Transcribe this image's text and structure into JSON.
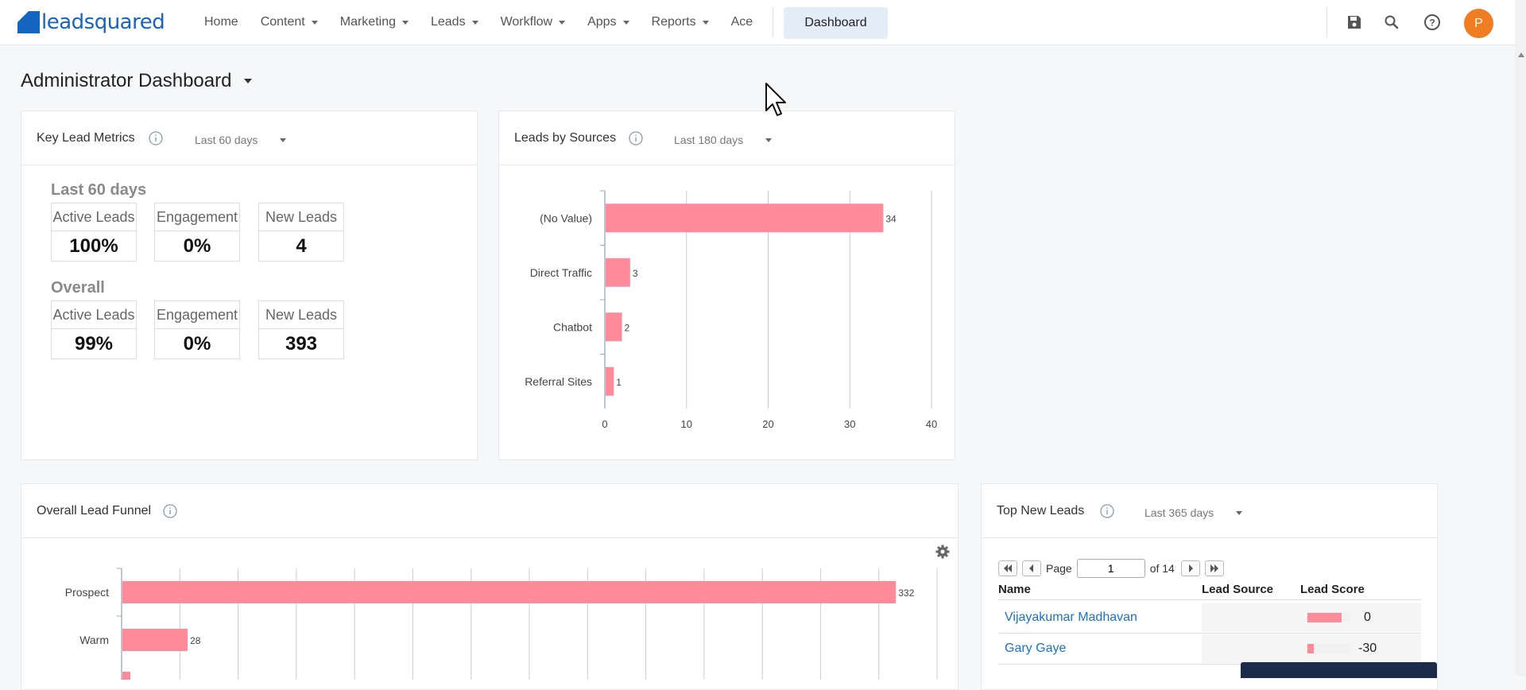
{
  "app": {
    "logo_text": "leadsquared"
  },
  "nav": {
    "items": [
      {
        "label": "Home",
        "dropdown": false
      },
      {
        "label": "Content",
        "dropdown": true
      },
      {
        "label": "Marketing",
        "dropdown": true
      },
      {
        "label": "Leads",
        "dropdown": true
      },
      {
        "label": "Workflow",
        "dropdown": true
      },
      {
        "label": "Apps",
        "dropdown": true
      },
      {
        "label": "Reports",
        "dropdown": true
      },
      {
        "label": "Ace",
        "dropdown": false
      }
    ],
    "active": "Dashboard",
    "icons": [
      "save-icon",
      "search-icon",
      "help-icon"
    ],
    "avatar_initial": "P"
  },
  "page": {
    "title": "Administrator Dashboard"
  },
  "key_metrics": {
    "title": "Key Lead Metrics",
    "period": "Last 60 days",
    "groups": [
      {
        "title": "Last 60 days",
        "metrics": [
          {
            "label": "Active Leads",
            "value": "100%"
          },
          {
            "label": "Engagement",
            "value": "0%"
          },
          {
            "label": "New Leads",
            "value": "4"
          }
        ]
      },
      {
        "title": "Overall",
        "metrics": [
          {
            "label": "Active Leads",
            "value": "99%"
          },
          {
            "label": "Engagement",
            "value": "0%"
          },
          {
            "label": "New Leads",
            "value": "393"
          }
        ]
      }
    ]
  },
  "leads_by_sources": {
    "title": "Leads by Sources",
    "period": "Last 180 days"
  },
  "funnel": {
    "title": "Overall Lead Funnel"
  },
  "top_new_leads": {
    "title": "Top New Leads",
    "period": "Last 365 days",
    "pager": {
      "page_label": "Page",
      "page_value": "1",
      "of_label": "of 14"
    },
    "columns": [
      "Name",
      "Lead Source",
      "Lead Score"
    ],
    "rows": [
      {
        "name": "Vijayakumar Madhavan",
        "source": "",
        "score": "0",
        "score_fraction": 0.8
      },
      {
        "name": "Gary Gaye",
        "source": "",
        "score": "-30",
        "score_fraction": 0.15
      }
    ]
  },
  "colors": {
    "bar": "#fe8a9a",
    "link": "#1a73c9",
    "brand": "#1565c0",
    "avatar": "#f07d22"
  },
  "chart_data": [
    {
      "type": "bar",
      "orientation": "horizontal",
      "categories": [
        "(No Value)",
        "Direct Traffic",
        "Chatbot",
        "Referral Sites"
      ],
      "values": [
        34,
        3,
        2,
        1
      ],
      "xlim": [
        0,
        40
      ],
      "xticks": [
        0,
        10,
        20,
        30,
        40
      ],
      "grid": true
    },
    {
      "type": "bar",
      "orientation": "horizontal",
      "categories": [
        "Prospect",
        "Warm"
      ],
      "values": [
        332,
        28
      ],
      "grid": true
    }
  ]
}
